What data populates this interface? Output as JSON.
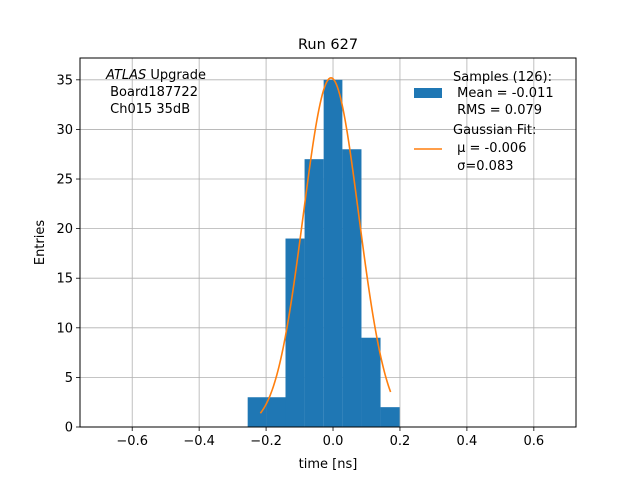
{
  "chart_data": {
    "type": "bar",
    "title": "Run 627",
    "xlabel": "time [ns]",
    "ylabel": "Entries",
    "xlim": [
      -0.756,
      0.726
    ],
    "ylim": [
      0,
      37.2
    ],
    "xticks": [
      -0.6,
      -0.4,
      -0.2,
      0.0,
      0.2,
      0.4,
      0.6
    ],
    "xtick_labels": [
      "−0.6",
      "−0.4",
      "−0.2",
      "0.0",
      "0.2",
      "0.4",
      "0.6"
    ],
    "yticks": [
      0,
      5,
      10,
      15,
      20,
      25,
      30,
      35
    ],
    "grid": true,
    "histogram": {
      "bin_edges": [
        -0.255,
        -0.199,
        -0.142,
        -0.085,
        -0.028,
        0.028,
        0.085,
        0.142,
        0.199
      ],
      "counts": [
        3,
        3,
        19,
        27,
        35,
        28,
        9,
        2
      ],
      "color": "#1f77b4"
    },
    "fit_curve": {
      "mu": -0.006,
      "sigma": 0.083,
      "amplitude": 35.2,
      "x_range": [
        -0.217,
        0.172
      ],
      "color": "#ff7f0e"
    },
    "legend": {
      "placement": "top-right",
      "samples_lines": [
        "Samples (126):",
        " Mean = -0.011",
        " RMS = 0.079"
      ],
      "fit_lines": [
        "Gaussian Fit:",
        " μ = -0.006",
        " σ=0.083"
      ]
    },
    "annotation": {
      "lines": [
        "ATLAS Upgrade",
        " Board187722",
        " Ch015 35dB"
      ],
      "italic_word": "ATLAS"
    }
  }
}
